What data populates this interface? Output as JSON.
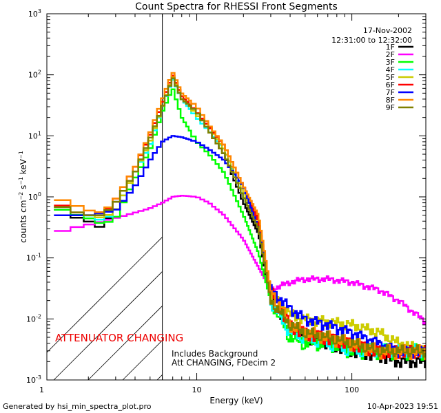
{
  "chart_data": {
    "type": "line",
    "title": "Count Spectra for RHESSI Front Segments",
    "xlabel": "Energy (keV)",
    "ylabel": "counts cm^-2 s^-1 keV^-1",
    "xscale": "log",
    "yscale": "log",
    "xlim": [
      1.08,
      300
    ],
    "ylim": [
      0.001,
      1000
    ],
    "x_ticks": [
      {
        "value": 1,
        "label": "1"
      },
      {
        "value": 10,
        "label": "10"
      },
      {
        "value": 100,
        "label": "100"
      }
    ],
    "y_ticks": [
      {
        "value": 0.001,
        "base": "10",
        "exp": "-3"
      },
      {
        "value": 0.01,
        "base": "10",
        "exp": "-2"
      },
      {
        "value": 0.1,
        "base": "10",
        "exp": "-1"
      },
      {
        "value": 1,
        "base": "10",
        "exp": "0"
      },
      {
        "value": 10,
        "base": "10",
        "exp": "1"
      },
      {
        "value": 100,
        "base": "10",
        "exp": "2"
      },
      {
        "value": 1000,
        "base": "10",
        "exp": "3"
      }
    ],
    "date": "17-Nov-2002",
    "time_range": "12:31:00 to 12:32:00",
    "attenuator_boundary_kev": 6,
    "annotations": {
      "attenuator": "ATTENUATOR CHANGING",
      "background": "Includes Background",
      "att_state": "Att CHANGING, FDecim 2"
    },
    "footer_left": "Generated by hsi_min_spectra_plot.pro",
    "footer_right": "10-Apr-2023 19:51",
    "series": [
      {
        "name": "1F",
        "color": "#000000",
        "hi": 1.0,
        "lo": 0.05,
        "ripple": 0.15,
        "x": [
          1.2,
          1.5,
          2.0,
          2.5,
          3.0,
          4.0,
          5.0,
          6.0,
          7.0,
          8.0,
          10.0,
          12.0,
          15.0,
          20.0,
          25.0,
          30.0,
          40.0,
          50.0,
          70.0,
          100.0,
          150.0,
          200.0,
          300.0
        ],
        "y": [
          0.8,
          0.5,
          0.4,
          0.3,
          0.8,
          2.5,
          8,
          30,
          90,
          40,
          25,
          12,
          5,
          0.8,
          0.25,
          0.02,
          0.008,
          0.005,
          0.004,
          0.003,
          0.0025,
          0.002,
          0.002
        ]
      },
      {
        "name": "2F",
        "color": "#ff00ff",
        "hi": 1.0,
        "lo": 0.08,
        "ripple": 0.08,
        "x": [
          1.2,
          1.5,
          2.0,
          2.5,
          3.0,
          4.0,
          5.0,
          6.0,
          7.0,
          8.0,
          10.0,
          12.0,
          15.0,
          20.0,
          25.0,
          30.0,
          40.0,
          50.0,
          70.0,
          100.0,
          150.0,
          200.0,
          300.0
        ],
        "y": [
          0.25,
          0.3,
          0.35,
          0.4,
          0.45,
          0.55,
          0.65,
          0.8,
          1.0,
          1.05,
          1.0,
          0.8,
          0.5,
          0.2,
          0.07,
          0.03,
          0.04,
          0.045,
          0.045,
          0.04,
          0.03,
          0.02,
          0.009
        ]
      },
      {
        "name": "3F",
        "color": "#00ff00",
        "hi": 1.0,
        "lo": 0.05,
        "ripple": 0.2,
        "x": [
          1.2,
          1.5,
          2.0,
          2.5,
          3.0,
          4.0,
          5.0,
          6.0,
          7.0,
          8.0,
          10.0,
          12.0,
          15.0,
          20.0,
          25.0,
          30.0,
          40.0,
          50.0,
          70.0,
          100.0,
          150.0,
          200.0,
          300.0
        ],
        "y": [
          0.7,
          0.55,
          0.45,
          0.35,
          0.45,
          2,
          6,
          25,
          60,
          20,
          8,
          5,
          2.5,
          0.5,
          0.12,
          0.02,
          0.005,
          0.004,
          0.004,
          0.003,
          0.003,
          0.003,
          0.003
        ]
      },
      {
        "name": "4F",
        "color": "#00ffff",
        "hi": 1.0,
        "lo": 0.05,
        "ripple": 0.18,
        "x": [
          1.2,
          1.5,
          2.0,
          2.5,
          3.0,
          4.0,
          5.0,
          6.0,
          7.0,
          8.0,
          10.0,
          12.0,
          15.0,
          20.0,
          25.0,
          30.0,
          40.0,
          50.0,
          70.0,
          100.0,
          150.0,
          200.0,
          300.0
        ],
        "y": [
          0.8,
          0.6,
          0.5,
          0.4,
          0.6,
          2.5,
          7,
          30,
          85,
          40,
          20,
          12,
          6,
          1,
          0.3,
          0.02,
          0.006,
          0.005,
          0.004,
          0.003,
          0.003,
          0.003,
          0.003
        ]
      },
      {
        "name": "5F",
        "color": "#cccc00",
        "hi": 1.0,
        "lo": 0.05,
        "ripple": 0.15,
        "x": [
          1.2,
          1.5,
          2.0,
          2.5,
          3.0,
          4.0,
          5.0,
          6.0,
          7.0,
          8.0,
          10.0,
          12.0,
          15.0,
          20.0,
          25.0,
          30.0,
          40.0,
          50.0,
          70.0,
          100.0,
          150.0,
          200.0,
          300.0
        ],
        "y": [
          0.8,
          0.6,
          0.5,
          0.45,
          0.6,
          2.5,
          8,
          30,
          95,
          45,
          22,
          14,
          6,
          1.2,
          0.4,
          0.025,
          0.012,
          0.01,
          0.009,
          0.008,
          0.006,
          0.004,
          0.003
        ]
      },
      {
        "name": "6F",
        "color": "#ff0000",
        "hi": 1.0,
        "lo": 0.05,
        "ripple": 0.18,
        "x": [
          1.2,
          1.5,
          2.0,
          2.5,
          3.0,
          4.0,
          5.0,
          6.0,
          7.0,
          8.0,
          10.0,
          12.0,
          15.0,
          20.0,
          25.0,
          30.0,
          40.0,
          50.0,
          70.0,
          100.0,
          150.0,
          200.0,
          300.0
        ],
        "y": [
          0.9,
          0.6,
          0.5,
          0.5,
          0.9,
          3,
          10,
          35,
          100,
          45,
          25,
          14,
          7,
          1.5,
          0.4,
          0.03,
          0.008,
          0.006,
          0.005,
          0.004,
          0.003,
          0.003,
          0.003
        ]
      },
      {
        "name": "7F",
        "color": "#0000ff",
        "hi": 1.0,
        "lo": 0.05,
        "ripple": 0.15,
        "x": [
          1.2,
          1.5,
          2.0,
          2.5,
          3.0,
          4.0,
          5.0,
          6.0,
          7.0,
          8.0,
          10.0,
          12.0,
          15.0,
          20.0,
          25.0,
          30.0,
          40.0,
          50.0,
          70.0,
          100.0,
          150.0,
          200.0,
          300.0
        ],
        "y": [
          0.5,
          0.5,
          0.5,
          0.55,
          0.6,
          1.5,
          4,
          8,
          10,
          9.5,
          8,
          6,
          4,
          1.5,
          0.3,
          0.03,
          0.015,
          0.01,
          0.008,
          0.006,
          0.004,
          0.003,
          0.003
        ]
      },
      {
        "name": "8F",
        "color": "#ff8800",
        "hi": 1.0,
        "lo": 0.05,
        "ripple": 0.18,
        "x": [
          1.2,
          1.5,
          2.0,
          2.5,
          3.0,
          4.0,
          5.0,
          6.0,
          7.0,
          8.0,
          10.0,
          12.0,
          15.0,
          20.0,
          25.0,
          30.0,
          40.0,
          50.0,
          70.0,
          100.0,
          150.0,
          200.0,
          300.0
        ],
        "y": [
          1.0,
          0.8,
          0.6,
          0.55,
          0.9,
          3,
          11,
          40,
          110,
          50,
          30,
          15,
          7,
          1.5,
          0.5,
          0.03,
          0.008,
          0.006,
          0.005,
          0.004,
          0.003,
          0.003,
          0.003
        ]
      },
      {
        "name": "9F",
        "color": "#808000",
        "hi": 1.0,
        "lo": 0.05,
        "ripple": 0.15,
        "x": [
          1.2,
          1.5,
          2.0,
          2.5,
          3.0,
          4.0,
          5.0,
          6.0,
          7.0,
          8.0,
          10.0,
          12.0,
          15.0,
          20.0,
          25.0,
          30.0,
          40.0,
          50.0,
          70.0,
          100.0,
          150.0,
          200.0,
          300.0
        ],
        "y": [
          0.8,
          0.6,
          0.5,
          0.5,
          0.8,
          2.5,
          9,
          30,
          90,
          40,
          25,
          12,
          5,
          1,
          0.3,
          0.02,
          0.008,
          0.006,
          0.005,
          0.004,
          0.003,
          0.003,
          0.003
        ]
      }
    ]
  }
}
